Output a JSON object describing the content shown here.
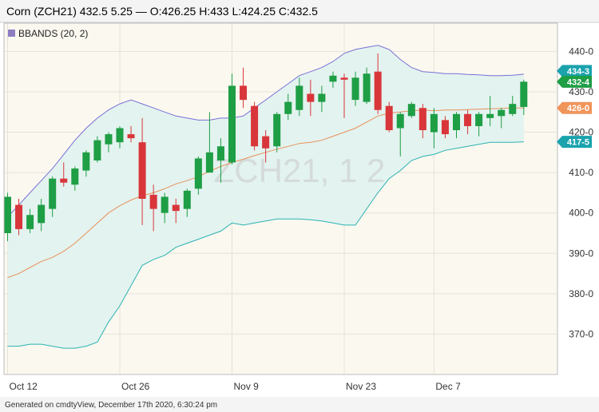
{
  "header": {
    "text": "Corn (ZCH21) 432.5 5.25 — O:426.25 H:433 L:424.25 C:432.5"
  },
  "legend": {
    "label": "BBANDS (20, 2)",
    "color": "#8e7cc3"
  },
  "watermark": "ZCH21, 1 2",
  "footer": "Generated on cmdtyView, December 17th 2020, 6:30:24 pm",
  "colors": {
    "up": "#1e9e45",
    "down": "#d8363a",
    "upper_band": "#7a6fd6",
    "lower_band": "#2bb3b3",
    "middle_band": "#e8915a",
    "band_fill": "#e3f3ef",
    "plot_bg": "#fbf8f0"
  },
  "price_tags": [
    {
      "label": "434-3",
      "value": 434.375,
      "color": "#1aa3ad",
      "underlay": true
    },
    {
      "label": "432-4",
      "value": 432.5,
      "color": "#1e9e45",
      "underlay": false
    },
    {
      "label": "426-0",
      "value": 426.0,
      "color": "#f0955a",
      "underlay": false
    },
    {
      "label": "417-5",
      "value": 417.625,
      "color": "#1aa3ad",
      "underlay": false
    }
  ],
  "chart_data": {
    "type": "candlestick",
    "ylim": [
      360,
      447
    ],
    "yticks": [
      {
        "value": 370,
        "label": "370-0"
      },
      {
        "value": 380,
        "label": "380-0"
      },
      {
        "value": 390,
        "label": "390-0"
      },
      {
        "value": 400,
        "label": "400-0"
      },
      {
        "value": 410,
        "label": "410-0"
      },
      {
        "value": 420,
        "label": "420-0"
      },
      {
        "value": 430,
        "label": "430-0"
      },
      {
        "value": 440,
        "label": "440-0"
      }
    ],
    "xticks": [
      {
        "index": 0,
        "label": "Oct 12"
      },
      {
        "index": 10,
        "label": "Oct 26"
      },
      {
        "index": 20,
        "label": "Nov 9"
      },
      {
        "index": 30,
        "label": "Nov 23"
      },
      {
        "index": 38,
        "label": "Dec 7"
      }
    ],
    "candles": [
      {
        "date": "Oct 12",
        "o": 395.0,
        "h": 405.0,
        "l": 393.0,
        "c": 404.0
      },
      {
        "date": "Oct 13",
        "o": 402.0,
        "h": 403.5,
        "l": 394.5,
        "c": 396.0
      },
      {
        "date": "Oct 14",
        "o": 396.0,
        "h": 401.0,
        "l": 395.0,
        "c": 399.5
      },
      {
        "date": "Oct 15",
        "o": 397.5,
        "h": 403.5,
        "l": 395.5,
        "c": 402.0
      },
      {
        "date": "Oct 16",
        "o": 401.0,
        "h": 409.0,
        "l": 399.0,
        "c": 408.5
      },
      {
        "date": "Oct 19",
        "o": 408.5,
        "h": 412.5,
        "l": 406.5,
        "c": 407.5
      },
      {
        "date": "Oct 20",
        "o": 407.0,
        "h": 411.5,
        "l": 405.5,
        "c": 411.0
      },
      {
        "date": "Oct 21",
        "o": 410.5,
        "h": 415.5,
        "l": 409.0,
        "c": 415.0
      },
      {
        "date": "Oct 22",
        "o": 413.0,
        "h": 419.0,
        "l": 412.5,
        "c": 418.0
      },
      {
        "date": "Oct 23",
        "o": 417.0,
        "h": 420.0,
        "l": 415.0,
        "c": 419.5
      },
      {
        "date": "Oct 26",
        "o": 417.5,
        "h": 421.5,
        "l": 416.0,
        "c": 421.0
      },
      {
        "date": "Oct 27",
        "o": 419.5,
        "h": 421.5,
        "l": 417.5,
        "c": 418.5
      },
      {
        "date": "Oct 28",
        "o": 417.5,
        "h": 423.5,
        "l": 397.0,
        "c": 403.5
      },
      {
        "date": "Oct 29",
        "o": 404.5,
        "h": 407.0,
        "l": 395.5,
        "c": 401.0
      },
      {
        "date": "Oct 30",
        "o": 400.0,
        "h": 405.0,
        "l": 397.5,
        "c": 404.0
      },
      {
        "date": "Nov 2",
        "o": 402.0,
        "h": 403.5,
        "l": 397.5,
        "c": 400.5
      },
      {
        "date": "Nov 3",
        "o": 401.0,
        "h": 406.0,
        "l": 399.0,
        "c": 405.5
      },
      {
        "date": "Nov 4",
        "o": 406.0,
        "h": 414.0,
        "l": 404.5,
        "c": 413.5
      },
      {
        "date": "Nov 5",
        "o": 410.0,
        "h": 425.0,
        "l": 410.0,
        "c": 415.0
      },
      {
        "date": "Nov 6",
        "o": 413.0,
        "h": 418.5,
        "l": 407.5,
        "c": 416.5
      },
      {
        "date": "Nov 9",
        "o": 412.5,
        "h": 434.5,
        "l": 412.0,
        "c": 431.5
      },
      {
        "date": "Nov 10",
        "o": 431.5,
        "h": 436.0,
        "l": 426.0,
        "c": 428.0
      },
      {
        "date": "Nov 11",
        "o": 426.5,
        "h": 427.5,
        "l": 415.5,
        "c": 416.5
      },
      {
        "date": "Nov 12",
        "o": 419.0,
        "h": 420.5,
        "l": 412.5,
        "c": 416.0
      },
      {
        "date": "Nov 13",
        "o": 416.5,
        "h": 425.0,
        "l": 415.0,
        "c": 424.5
      },
      {
        "date": "Nov 16",
        "o": 424.5,
        "h": 429.5,
        "l": 423.0,
        "c": 427.5
      },
      {
        "date": "Nov 17",
        "o": 425.5,
        "h": 433.5,
        "l": 424.0,
        "c": 431.5
      },
      {
        "date": "Nov 18",
        "o": 429.5,
        "h": 433.0,
        "l": 424.0,
        "c": 427.5
      },
      {
        "date": "Nov 19",
        "o": 427.5,
        "h": 431.5,
        "l": 425.0,
        "c": 429.5
      },
      {
        "date": "Nov 20",
        "o": 432.5,
        "h": 435.0,
        "l": 431.0,
        "c": 434.0
      },
      {
        "date": "Nov 23",
        "o": 433.5,
        "h": 434.5,
        "l": 423.5,
        "c": 433.0
      },
      {
        "date": "Nov 24",
        "o": 428.0,
        "h": 435.0,
        "l": 426.5,
        "c": 433.5
      },
      {
        "date": "Nov 25",
        "o": 427.5,
        "h": 436.0,
        "l": 427.0,
        "c": 434.5
      },
      {
        "date": "Nov 27",
        "o": 435.0,
        "h": 439.5,
        "l": 424.5,
        "c": 425.5
      },
      {
        "date": "Nov 30",
        "o": 426.5,
        "h": 427.5,
        "l": 420.0,
        "c": 420.5
      },
      {
        "date": "Dec 1",
        "o": 421.0,
        "h": 425.0,
        "l": 414.0,
        "c": 424.5
      },
      {
        "date": "Dec 2",
        "o": 424.0,
        "h": 427.5,
        "l": 423.5,
        "c": 427.0
      },
      {
        "date": "Dec 3",
        "o": 426.0,
        "h": 427.0,
        "l": 418.5,
        "c": 420.5
      },
      {
        "date": "Dec 4",
        "o": 420.0,
        "h": 426.0,
        "l": 416.0,
        "c": 424.5
      },
      {
        "date": "Dec 7",
        "o": 423.0,
        "h": 424.0,
        "l": 418.5,
        "c": 419.5
      },
      {
        "date": "Dec 8",
        "o": 420.5,
        "h": 425.0,
        "l": 418.5,
        "c": 424.5
      },
      {
        "date": "Dec 9",
        "o": 424.5,
        "h": 425.5,
        "l": 419.5,
        "c": 421.5
      },
      {
        "date": "Dec 10",
        "o": 421.5,
        "h": 425.0,
        "l": 419.0,
        "c": 424.5
      },
      {
        "date": "Dec 11",
        "o": 423.5,
        "h": 429.0,
        "l": 421.5,
        "c": 424.5
      },
      {
        "date": "Dec 14",
        "o": 424.0,
        "h": 426.0,
        "l": 421.0,
        "c": 425.5
      },
      {
        "date": "Dec 15",
        "o": 424.5,
        "h": 429.0,
        "l": 424.0,
        "c": 427.0
      },
      {
        "date": "Dec 16",
        "o": 426.25,
        "h": 433.0,
        "l": 424.25,
        "c": 432.5
      }
    ],
    "bbands": {
      "upper": [
        399.0,
        402.0,
        405.0,
        408.0,
        411.0,
        414.5,
        418.0,
        421.0,
        423.5,
        425.5,
        427.0,
        428.0,
        427.0,
        426.0,
        425.0,
        424.0,
        423.5,
        423.0,
        423.0,
        423.5,
        423.5,
        424.0,
        426.0,
        428.0,
        430.0,
        432.0,
        434.0,
        435.0,
        436.0,
        437.5,
        439.5,
        440.5,
        441.0,
        441.5,
        440.5,
        438.0,
        436.0,
        435.0,
        434.8,
        434.5,
        434.5,
        434.3,
        434.2,
        434.0,
        434.0,
        434.1,
        434.375
      ],
      "middle": [
        384.0,
        385.0,
        386.5,
        388.0,
        389.0,
        390.5,
        392.5,
        395.0,
        397.5,
        400.0,
        401.8,
        403.2,
        404.3,
        405.0,
        406.0,
        407.2,
        408.0,
        409.0,
        410.3,
        411.5,
        412.5,
        413.3,
        414.2,
        415.0,
        415.8,
        416.5,
        417.2,
        417.5,
        418.0,
        419.0,
        420.0,
        421.0,
        422.5,
        424.0,
        424.7,
        425.0,
        425.3,
        425.5,
        425.3,
        425.5,
        425.5,
        425.6,
        425.7,
        425.8,
        425.9,
        426.0,
        426.0
      ],
      "lower": [
        367.0,
        367.0,
        367.5,
        367.5,
        367.0,
        366.5,
        366.5,
        367.0,
        368.0,
        373.0,
        377.0,
        382.0,
        387.0,
        388.5,
        389.5,
        391.5,
        392.5,
        393.5,
        394.5,
        395.5,
        397.5,
        397.0,
        397.5,
        398.0,
        398.5,
        398.5,
        398.5,
        398.3,
        398.0,
        397.5,
        397.0,
        397.0,
        401.0,
        405.0,
        408.5,
        410.5,
        413.0,
        414.0,
        414.5,
        415.5,
        416.0,
        416.5,
        417.0,
        417.5,
        417.5,
        417.5,
        417.625
      ]
    }
  }
}
